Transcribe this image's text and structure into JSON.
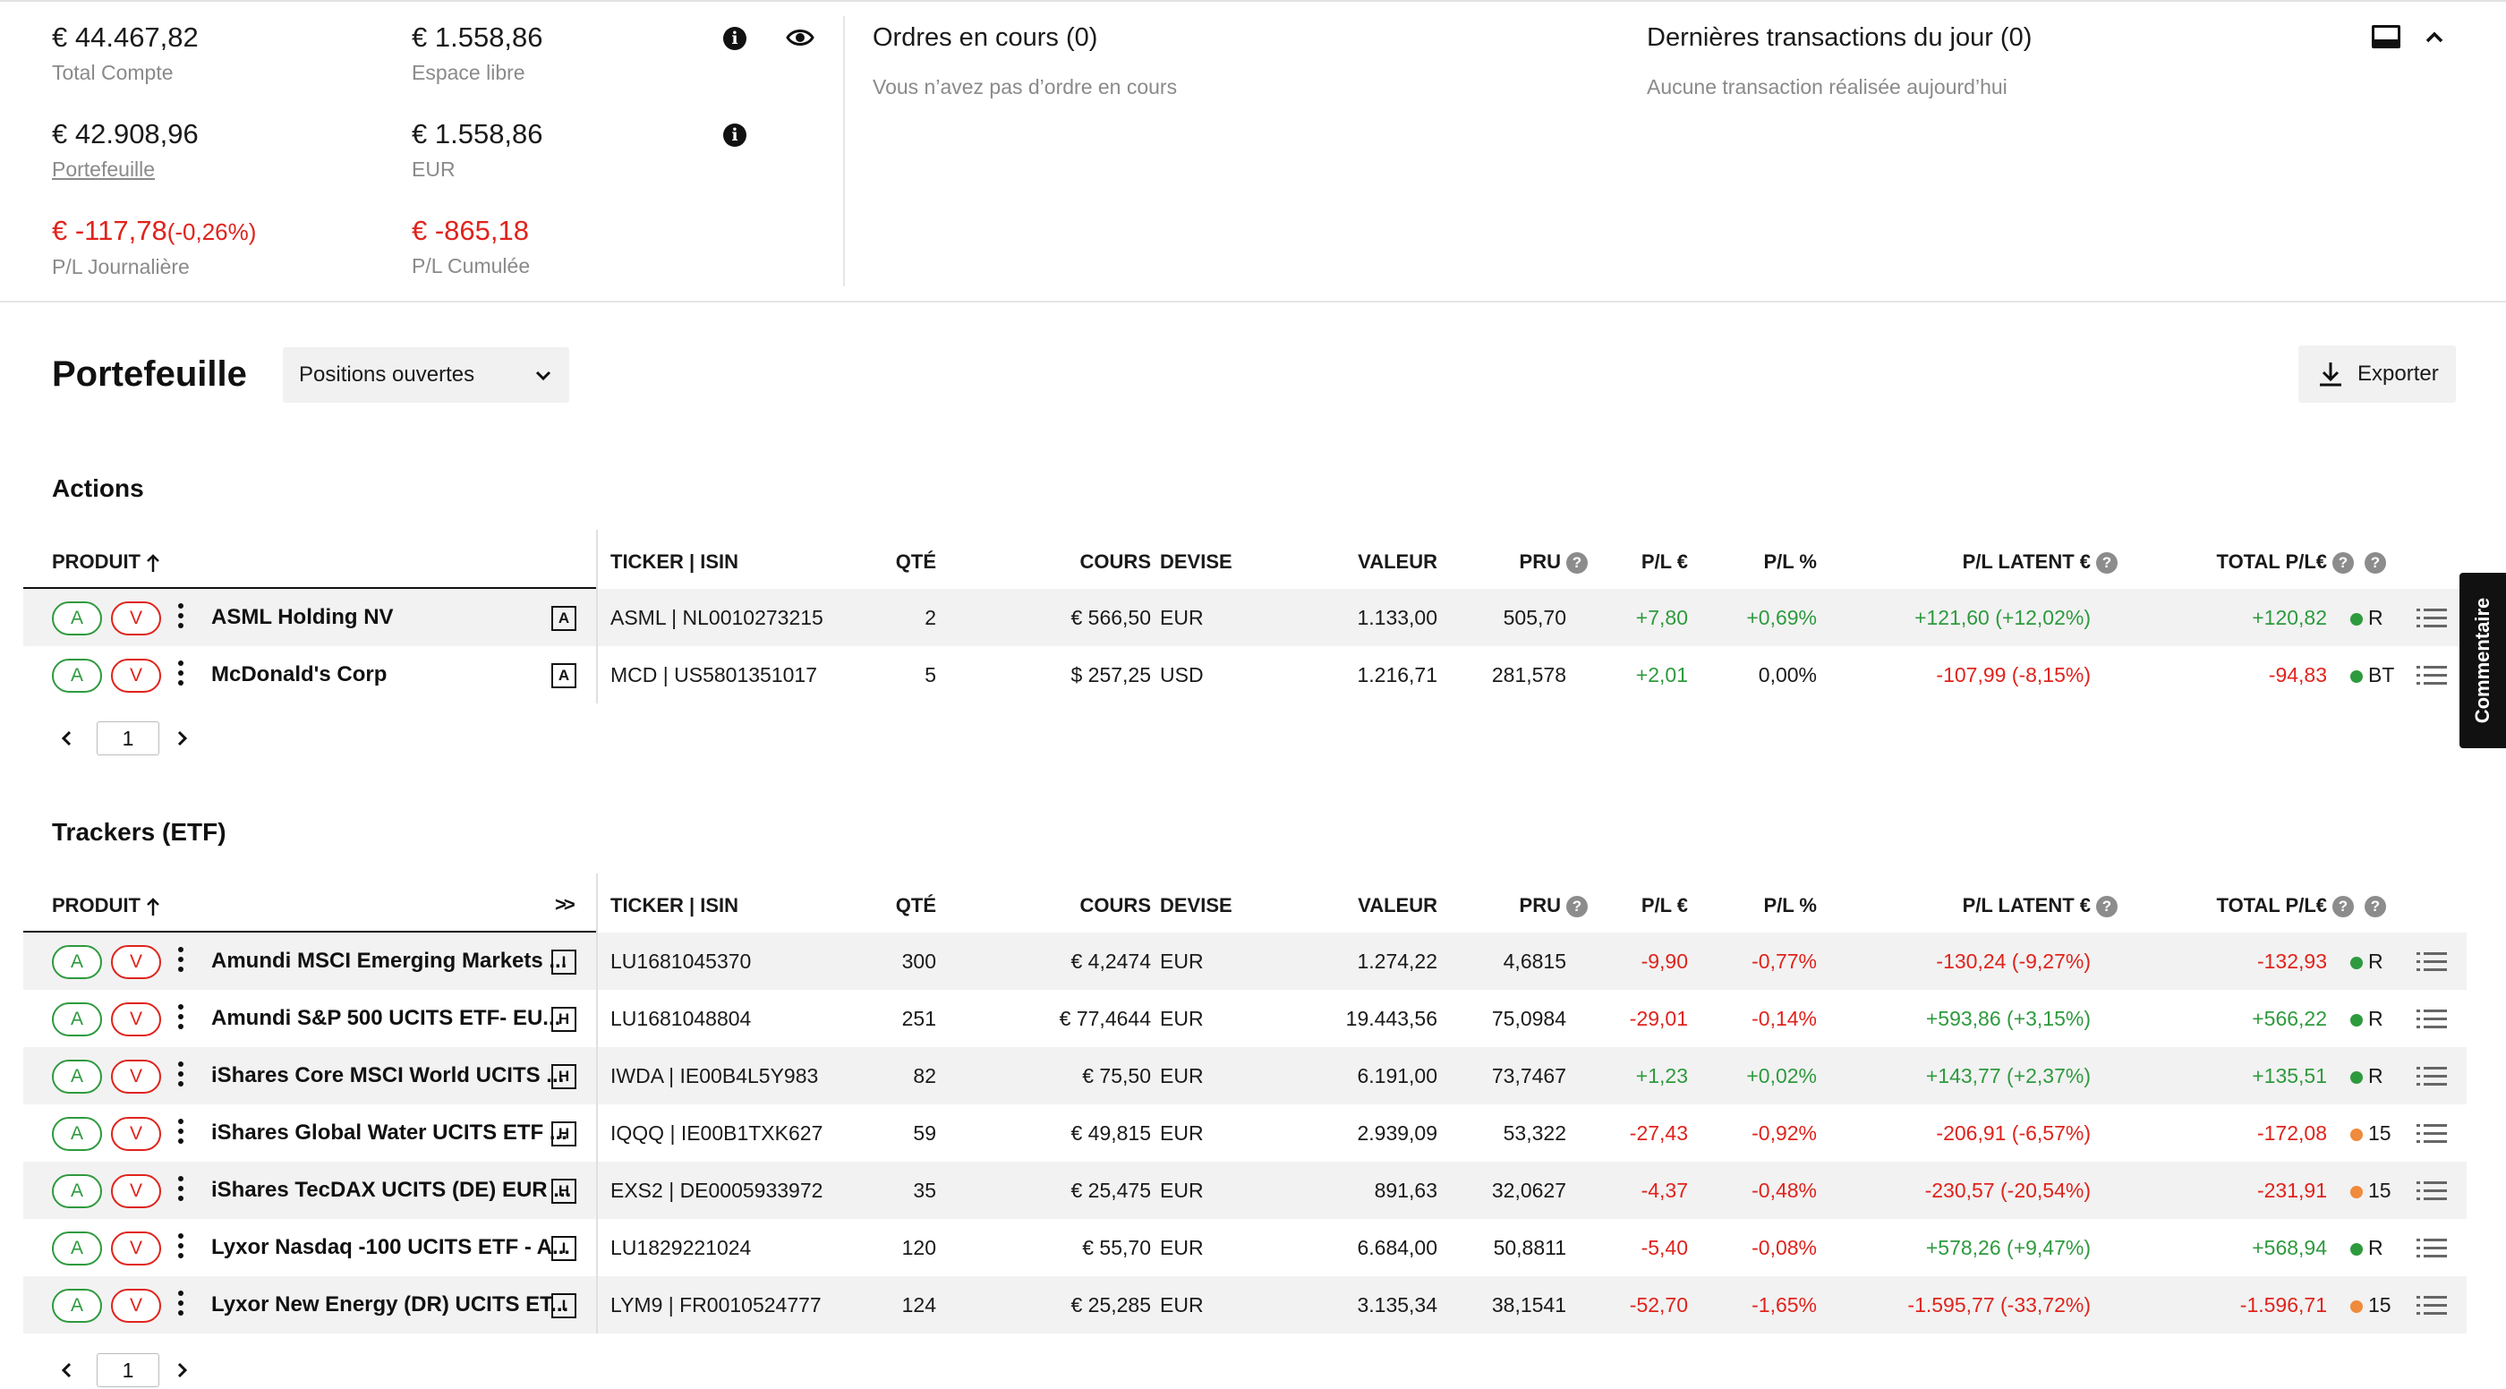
{
  "summary": {
    "total_compte": {
      "value": "€ 44.467,82",
      "label": "Total Compte"
    },
    "espace_libre": {
      "value": "€ 1.558,86",
      "label": "Espace libre"
    },
    "portefeuille": {
      "value": "€ 42.908,96",
      "label": "Portefeuille"
    },
    "eur": {
      "value": "€ 1.558,86",
      "label": "EUR"
    },
    "pl_journaliere": {
      "value": "€ -117,78",
      "pct": "(-0,26%)",
      "label": "P/L Journalière"
    },
    "pl_cumulee": {
      "value": "€ -865,18",
      "label": "P/L Cumulée"
    }
  },
  "orders": {
    "title": "Ordres en cours (0)",
    "empty": "Vous n’avez pas d’ordre en cours"
  },
  "transactions": {
    "title": "Dernières transactions du jour (0)",
    "empty": "Aucune transaction réalisée aujourd’hui"
  },
  "portfolio": {
    "title": "Portefeuille",
    "filter": "Positions ouvertes",
    "export": "Exporter"
  },
  "columns": {
    "produit": "PRODUIT",
    "ticker": "TICKER | ISIN",
    "qte": "QTÉ",
    "cours": "COURS",
    "devise": "DEVISE",
    "valeur": "VALEUR",
    "pru": "PRU",
    "pl_eur": "P/L €",
    "pl_pct": "P/L %",
    "pl_latent": "P/L LATENT €",
    "total_pl": "TOTAL P/L€",
    "expand": ">>"
  },
  "actions": {
    "title": "Actions",
    "page": "1",
    "rows": [
      {
        "buy": "A",
        "sell": "V",
        "name": "ASML Holding NV",
        "type": "A",
        "ticker": "ASML | NL0010273215",
        "qte": "2",
        "cours": "€ 566,50",
        "devise": "EUR",
        "valeur": "1.133,00",
        "pru": "505,70",
        "pl_eur": "+7,80",
        "pl_pct": "+0,69%",
        "pl_latent": "+121,60 (+12,02%)",
        "total_pl": "+120,82",
        "status_color": "#2e9a3e",
        "status": "R"
      },
      {
        "buy": "A",
        "sell": "V",
        "name": "McDonald's Corp",
        "type": "A",
        "ticker": "MCD | US5801351017",
        "qte": "5",
        "cours": "$ 257,25",
        "devise": "USD",
        "valeur": "1.216,71",
        "pru": "281,578",
        "pl_eur": "+2,01",
        "pl_pct": "0,00%",
        "pl_latent": "-107,99 (-8,15%)",
        "total_pl": "-94,83",
        "status_color": "#2e9a3e",
        "status": "BT"
      }
    ]
  },
  "trackers": {
    "title": "Trackers (ETF)",
    "page": "1",
    "rows": [
      {
        "buy": "A",
        "sell": "V",
        "name": "Amundi MSCI Emerging Markets ...",
        "type": "I",
        "ticker": "LU1681045370",
        "qte": "300",
        "cours": "€ 4,2474",
        "devise": "EUR",
        "valeur": "1.274,22",
        "pru": "4,6815",
        "pl_eur": "-9,90",
        "pl_pct": "-0,77%",
        "pl_latent": "-130,24 (-9,27%)",
        "total_pl": "-132,93",
        "status_color": "#2e9a3e",
        "status": "R"
      },
      {
        "buy": "A",
        "sell": "V",
        "name": "Amundi S&P 500 UCITS ETF- EU...",
        "type": "H",
        "ticker": "LU1681048804",
        "qte": "251",
        "cours": "€ 77,4644",
        "devise": "EUR",
        "valeur": "19.443,56",
        "pru": "75,0984",
        "pl_eur": "-29,01",
        "pl_pct": "-0,14%",
        "pl_latent": "+593,86 (+3,15%)",
        "total_pl": "+566,22",
        "status_color": "#2e9a3e",
        "status": "R"
      },
      {
        "buy": "A",
        "sell": "V",
        "name": "iShares Core MSCI World UCITS ...",
        "type": "H",
        "ticker": "IWDA | IE00B4L5Y983",
        "qte": "82",
        "cours": "€ 75,50",
        "devise": "EUR",
        "valeur": "6.191,00",
        "pru": "73,7467",
        "pl_eur": "+1,23",
        "pl_pct": "+0,02%",
        "pl_latent": "+143,77 (+2,37%)",
        "total_pl": "+135,51",
        "status_color": "#2e9a3e",
        "status": "R"
      },
      {
        "buy": "A",
        "sell": "V",
        "name": "iShares Global Water UCITS ETF ...",
        "type": "H",
        "ticker": "IQQQ | IE00B1TXK627",
        "qte": "59",
        "cours": "€ 49,815",
        "devise": "EUR",
        "valeur": "2.939,09",
        "pru": "53,322",
        "pl_eur": "-27,43",
        "pl_pct": "-0,92%",
        "pl_latent": "-206,91 (-6,57%)",
        "total_pl": "-172,08",
        "status_color": "#f08a3c",
        "status": "15"
      },
      {
        "buy": "A",
        "sell": "V",
        "name": "iShares TecDAX UCITS (DE) EUR ...",
        "type": "H",
        "ticker": "EXS2 | DE0005933972",
        "qte": "35",
        "cours": "€ 25,475",
        "devise": "EUR",
        "valeur": "891,63",
        "pru": "32,0627",
        "pl_eur": "-4,37",
        "pl_pct": "-0,48%",
        "pl_latent": "-230,57 (-20,54%)",
        "total_pl": "-231,91",
        "status_color": "#f08a3c",
        "status": "15"
      },
      {
        "buy": "A",
        "sell": "V",
        "name": "Lyxor Nasdaq -100 UCITS ETF - A...",
        "type": "I",
        "ticker": "LU1829221024",
        "qte": "120",
        "cours": "€ 55,70",
        "devise": "EUR",
        "valeur": "6.684,00",
        "pru": "50,8811",
        "pl_eur": "-5,40",
        "pl_pct": "-0,08%",
        "pl_latent": "+578,26 (+9,47%)",
        "total_pl": "+568,94",
        "status_color": "#2e9a3e",
        "status": "R"
      },
      {
        "buy": "A",
        "sell": "V",
        "name": "Lyxor New Energy (DR) UCITS ET...",
        "type": "I",
        "ticker": "LYM9 | FR0010524777",
        "qte": "124",
        "cours": "€ 25,285",
        "devise": "EUR",
        "valeur": "3.135,34",
        "pru": "38,1541",
        "pl_eur": "-52,70",
        "pl_pct": "-1,65%",
        "pl_latent": "-1.595,77 (-33,72%)",
        "total_pl": "-1.596,71",
        "status_color": "#f08a3c",
        "status": "15"
      }
    ]
  },
  "comment_tab": "Commentaire",
  "icons": [
    "info-icon",
    "eye-icon",
    "layout-icon",
    "chevron-up-icon",
    "chevron-down-icon",
    "download-icon",
    "sort-arrow-up-icon",
    "help-icon",
    "kebab-icon",
    "list-menu-icon",
    "chevron-left-icon",
    "chevron-right-icon"
  ]
}
